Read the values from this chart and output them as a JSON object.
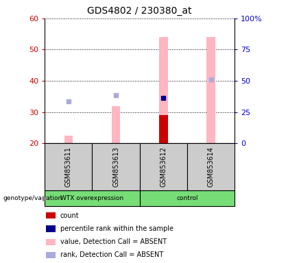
{
  "title": "GDS4802 / 230380_at",
  "samples": [
    "GSM853611",
    "GSM853613",
    "GSM853612",
    "GSM853614"
  ],
  "group_boundaries": [
    2
  ],
  "group_labels": [
    "WTX overexpression",
    "control"
  ],
  "group_color": "#77DD77",
  "ylim_left": [
    20,
    60
  ],
  "ylim_right": [
    0,
    100
  ],
  "yticks_left": [
    20,
    30,
    40,
    50,
    60
  ],
  "ytick_labels_left": [
    "20",
    "30",
    "40",
    "50",
    "60"
  ],
  "yticks_right": [
    0,
    25,
    50,
    75,
    100
  ],
  "ytick_labels_right": [
    "0",
    "25",
    "50",
    "75",
    "100%"
  ],
  "value_bars": [
    22.5,
    32.0,
    54.0,
    54.0
  ],
  "value_bar_color": "#FFB6C1",
  "count_bars": [
    null,
    null,
    29.0,
    null
  ],
  "count_bar_color": "#CC0000",
  "rank_dots": [
    33.5,
    35.5,
    34.5,
    40.5
  ],
  "rank_dot_colors": [
    "#AAAADD",
    "#AAAADD",
    "#00008B",
    "#AAAADD"
  ],
  "ylabel_left_color": "#CC0000",
  "ylabel_right_color": "#0000CC",
  "sample_bg_color": "#CCCCCC",
  "bar_bottom": 20,
  "bar_width": 0.18,
  "legend_items": [
    {
      "label": "count",
      "color": "#CC0000"
    },
    {
      "label": "percentile rank within the sample",
      "color": "#00008B"
    },
    {
      "label": "value, Detection Call = ABSENT",
      "color": "#FFB6C1"
    },
    {
      "label": "rank, Detection Call = ABSENT",
      "color": "#AAAADD"
    }
  ]
}
